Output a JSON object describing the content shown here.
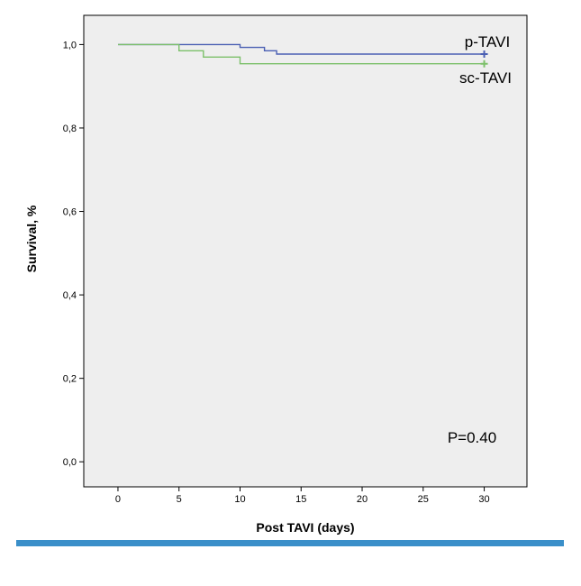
{
  "chart_data": {
    "type": "line",
    "step": true,
    "title": "",
    "xlabel": "Post TAVI (days)",
    "ylabel": "Survival, %",
    "xlim": [
      -2.8,
      33.5
    ],
    "ylim": [
      -0.06,
      1.07
    ],
    "x_ticks": [
      0,
      5,
      10,
      15,
      20,
      25,
      30
    ],
    "y_ticks": [
      0.0,
      0.2,
      0.4,
      0.6,
      0.8,
      1.0
    ],
    "y_tick_labels": [
      "0,0",
      "0,2",
      "0,4",
      "0,6",
      "0,8",
      "1,0"
    ],
    "series": [
      {
        "name": "p-TAVI",
        "color": "#4a5fb3",
        "x": [
          0,
          10,
          12,
          13,
          30
        ],
        "y": [
          1.0,
          0.993,
          0.985,
          0.977,
          0.977
        ],
        "censor_x": 30
      },
      {
        "name": "sc-TAVI",
        "color": "#7cc06a",
        "x": [
          0,
          5,
          7,
          10,
          30
        ],
        "y": [
          1.0,
          0.985,
          0.97,
          0.954,
          0.954
        ],
        "censor_x": 30
      }
    ],
    "annotation": "P=0.40"
  },
  "colors": {
    "plot_background": "#eeeeee",
    "bottom_rule": "#3a8fc9"
  }
}
